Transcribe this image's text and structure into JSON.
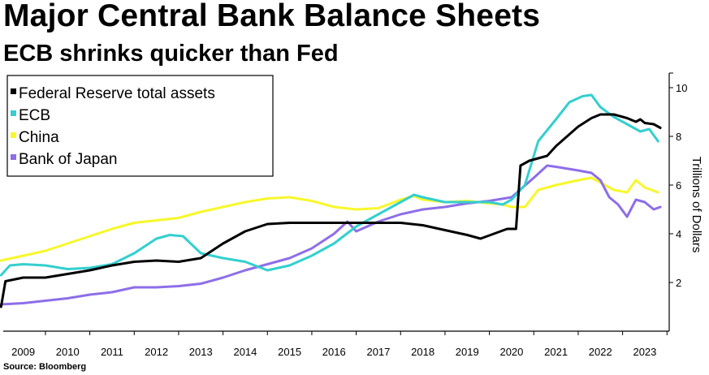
{
  "chart_data": {
    "type": "line",
    "title": "Major Central Bank Balance Sheets",
    "subtitle": "ECB shrinks quicker than Fed",
    "ylabel": "Trillions of Dollars",
    "source": "Source: Bloomberg",
    "ylim": [
      0,
      10.6
    ],
    "xlim": [
      2008.55,
      2023.55
    ],
    "yticks": [
      2,
      4,
      6,
      8,
      10
    ],
    "xticks": [
      2009,
      2010,
      2011,
      2012,
      2013,
      2014,
      2015,
      2016,
      2017,
      2018,
      2019,
      2020,
      2021,
      2022,
      2023
    ],
    "legend_position": "top-left",
    "series": [
      {
        "name": "China",
        "color": "#f7f72c",
        "points": [
          [
            2008.5,
            2.9
          ],
          [
            2009.0,
            3.1
          ],
          [
            2009.5,
            3.3
          ],
          [
            2010.0,
            3.6
          ],
          [
            2010.5,
            3.9
          ],
          [
            2011.0,
            4.2
          ],
          [
            2011.5,
            4.45
          ],
          [
            2012.0,
            4.55
          ],
          [
            2012.5,
            4.65
          ],
          [
            2013.0,
            4.9
          ],
          [
            2013.5,
            5.1
          ],
          [
            2014.0,
            5.3
          ],
          [
            2014.5,
            5.45
          ],
          [
            2015.0,
            5.5
          ],
          [
            2015.5,
            5.35
          ],
          [
            2016.0,
            5.1
          ],
          [
            2016.5,
            5.0
          ],
          [
            2017.0,
            5.05
          ],
          [
            2017.5,
            5.4
          ],
          [
            2017.8,
            5.55
          ],
          [
            2018.0,
            5.4
          ],
          [
            2018.5,
            5.3
          ],
          [
            2019.0,
            5.35
          ],
          [
            2019.5,
            5.25
          ],
          [
            2019.8,
            5.2
          ],
          [
            2020.0,
            5.1
          ],
          [
            2020.3,
            5.1
          ],
          [
            2020.6,
            5.8
          ],
          [
            2021.0,
            6.0
          ],
          [
            2021.5,
            6.2
          ],
          [
            2021.8,
            6.3
          ],
          [
            2022.0,
            6.1
          ],
          [
            2022.3,
            5.8
          ],
          [
            2022.6,
            5.7
          ],
          [
            2022.8,
            6.2
          ],
          [
            2023.0,
            5.9
          ],
          [
            2023.3,
            5.7
          ]
        ]
      },
      {
        "name": "Bank of Japan",
        "color": "#8e6ee8",
        "points": [
          [
            2008.5,
            1.1
          ],
          [
            2009.0,
            1.15
          ],
          [
            2009.5,
            1.25
          ],
          [
            2010.0,
            1.35
          ],
          [
            2010.5,
            1.5
          ],
          [
            2011.0,
            1.6
          ],
          [
            2011.5,
            1.8
          ],
          [
            2012.0,
            1.8
          ],
          [
            2012.5,
            1.85
          ],
          [
            2013.0,
            1.95
          ],
          [
            2013.5,
            2.2
          ],
          [
            2014.0,
            2.5
          ],
          [
            2014.5,
            2.75
          ],
          [
            2015.0,
            3.0
          ],
          [
            2015.5,
            3.4
          ],
          [
            2016.0,
            4.0
          ],
          [
            2016.3,
            4.5
          ],
          [
            2016.5,
            4.1
          ],
          [
            2017.0,
            4.5
          ],
          [
            2017.5,
            4.8
          ],
          [
            2018.0,
            5.0
          ],
          [
            2018.5,
            5.1
          ],
          [
            2019.0,
            5.25
          ],
          [
            2019.5,
            5.35
          ],
          [
            2020.0,
            5.5
          ],
          [
            2020.5,
            6.3
          ],
          [
            2020.8,
            6.8
          ],
          [
            2021.0,
            6.75
          ],
          [
            2021.5,
            6.6
          ],
          [
            2021.8,
            6.5
          ],
          [
            2022.0,
            6.2
          ],
          [
            2022.2,
            5.5
          ],
          [
            2022.4,
            5.2
          ],
          [
            2022.6,
            4.7
          ],
          [
            2022.8,
            5.4
          ],
          [
            2023.0,
            5.3
          ],
          [
            2023.2,
            5.0
          ],
          [
            2023.35,
            5.1
          ]
        ]
      },
      {
        "name": "ECB",
        "color": "#34cfcf",
        "points": [
          [
            2008.5,
            2.3
          ],
          [
            2008.7,
            2.7
          ],
          [
            2009.0,
            2.75
          ],
          [
            2009.5,
            2.7
          ],
          [
            2010.0,
            2.55
          ],
          [
            2010.5,
            2.6
          ],
          [
            2011.0,
            2.75
          ],
          [
            2011.5,
            3.2
          ],
          [
            2012.0,
            3.8
          ],
          [
            2012.3,
            3.95
          ],
          [
            2012.6,
            3.9
          ],
          [
            2013.0,
            3.2
          ],
          [
            2013.5,
            3.0
          ],
          [
            2014.0,
            2.85
          ],
          [
            2014.5,
            2.5
          ],
          [
            2015.0,
            2.7
          ],
          [
            2015.5,
            3.1
          ],
          [
            2016.0,
            3.6
          ],
          [
            2016.5,
            4.3
          ],
          [
            2017.0,
            4.8
          ],
          [
            2017.5,
            5.3
          ],
          [
            2017.8,
            5.6
          ],
          [
            2018.0,
            5.5
          ],
          [
            2018.5,
            5.3
          ],
          [
            2019.0,
            5.3
          ],
          [
            2019.5,
            5.3
          ],
          [
            2019.8,
            5.2
          ],
          [
            2020.0,
            5.4
          ],
          [
            2020.3,
            6.0
          ],
          [
            2020.6,
            7.8
          ],
          [
            2021.0,
            8.7
          ],
          [
            2021.3,
            9.4
          ],
          [
            2021.6,
            9.65
          ],
          [
            2021.8,
            9.7
          ],
          [
            2022.0,
            9.2
          ],
          [
            2022.3,
            8.8
          ],
          [
            2022.6,
            8.5
          ],
          [
            2022.9,
            8.2
          ],
          [
            2023.1,
            8.3
          ],
          [
            2023.3,
            7.8
          ]
        ]
      },
      {
        "name": "Federal Reserve total assets",
        "color": "#000000",
        "points": [
          [
            2008.5,
            1.0
          ],
          [
            2008.6,
            2.05
          ],
          [
            2009.0,
            2.2
          ],
          [
            2009.5,
            2.2
          ],
          [
            2010.0,
            2.35
          ],
          [
            2010.5,
            2.5
          ],
          [
            2011.0,
            2.7
          ],
          [
            2011.5,
            2.85
          ],
          [
            2012.0,
            2.9
          ],
          [
            2012.5,
            2.85
          ],
          [
            2013.0,
            3.0
          ],
          [
            2013.5,
            3.6
          ],
          [
            2014.0,
            4.1
          ],
          [
            2014.5,
            4.4
          ],
          [
            2015.0,
            4.45
          ],
          [
            2015.5,
            4.45
          ],
          [
            2016.0,
            4.45
          ],
          [
            2016.5,
            4.45
          ],
          [
            2017.0,
            4.45
          ],
          [
            2017.5,
            4.45
          ],
          [
            2018.0,
            4.35
          ],
          [
            2018.5,
            4.15
          ],
          [
            2019.0,
            3.95
          ],
          [
            2019.3,
            3.8
          ],
          [
            2019.6,
            4.0
          ],
          [
            2019.9,
            4.2
          ],
          [
            2020.1,
            4.2
          ],
          [
            2020.2,
            6.8
          ],
          [
            2020.4,
            7.0
          ],
          [
            2020.8,
            7.2
          ],
          [
            2021.0,
            7.6
          ],
          [
            2021.5,
            8.4
          ],
          [
            2021.8,
            8.75
          ],
          [
            2022.0,
            8.9
          ],
          [
            2022.3,
            8.9
          ],
          [
            2022.6,
            8.75
          ],
          [
            2022.8,
            8.6
          ],
          [
            2022.9,
            8.7
          ],
          [
            2023.0,
            8.55
          ],
          [
            2023.2,
            8.5
          ],
          [
            2023.35,
            8.35
          ]
        ]
      }
    ]
  },
  "legend_order": [
    "Federal Reserve total assets",
    "ECB",
    "China",
    "Bank of Japan"
  ]
}
